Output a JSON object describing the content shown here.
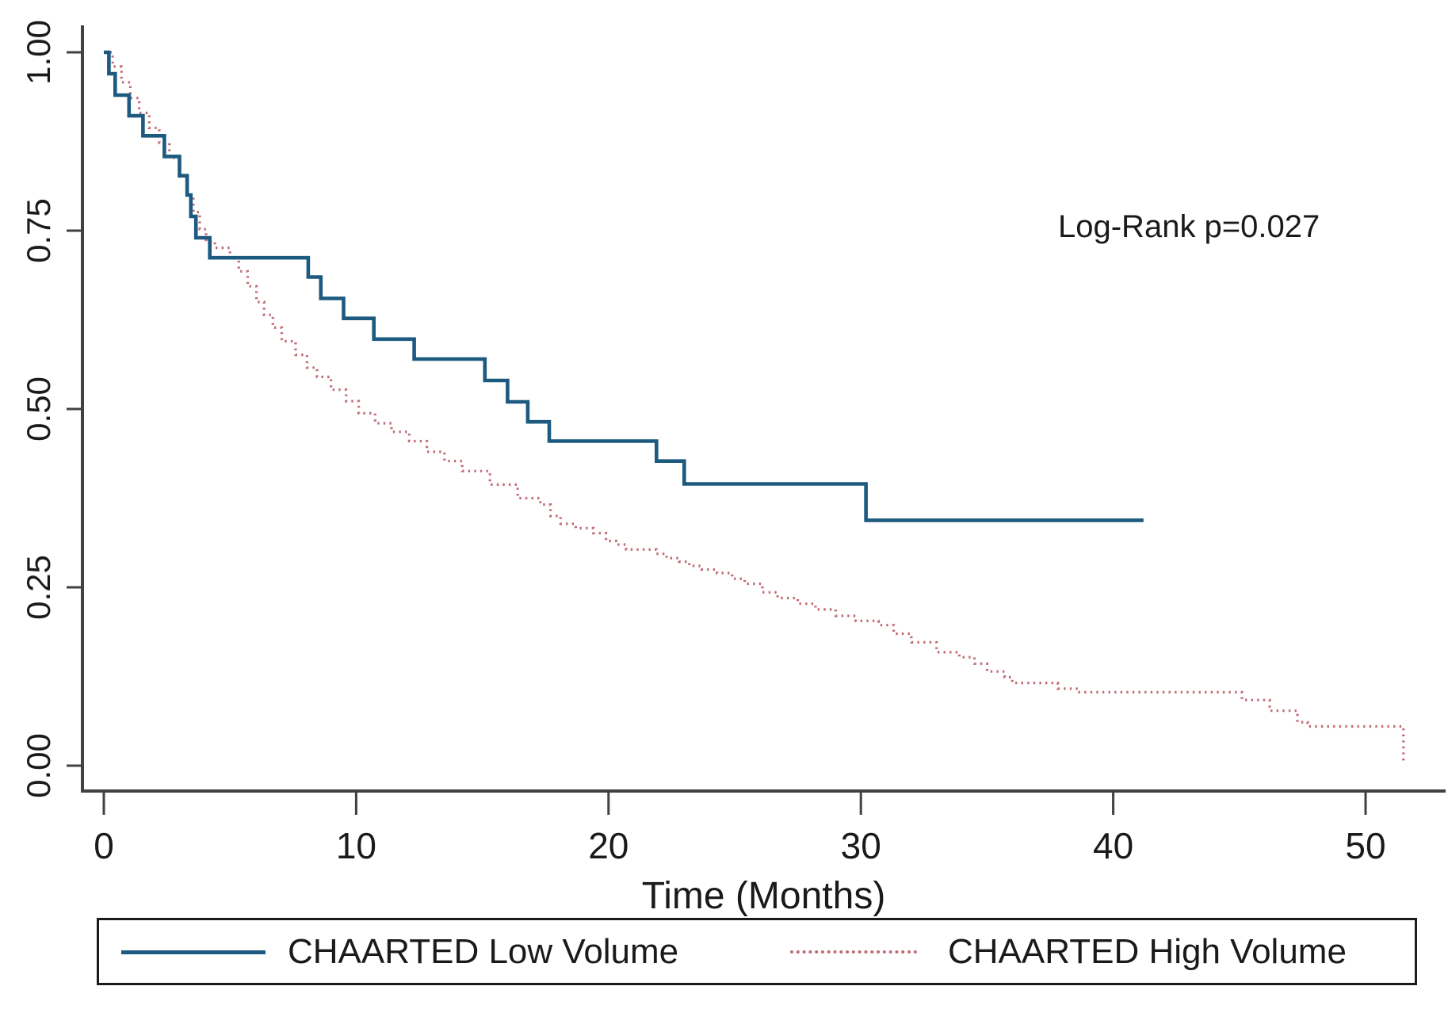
{
  "figure": {
    "background": "#ffffff",
    "axis_color": "#414042",
    "text_color": "#1a1a1a"
  },
  "chart_data": {
    "type": "line",
    "subtype": "kaplan-meier-step-survival",
    "title": "",
    "xlabel": "Time (Months)",
    "ylabel": "",
    "annotation": "Log-Rank p=0.027",
    "grid": false,
    "legend_position": "bottom-boxed",
    "xlim": [
      0,
      53
    ],
    "ylim": [
      0.0,
      1.0
    ],
    "x_ticks": [
      0,
      10,
      20,
      30,
      40,
      50
    ],
    "y_ticks": [
      "0.00",
      "0.25",
      "0.50",
      "0.75",
      "1.00"
    ],
    "series": [
      {
        "name": "CHAARTED High Volume",
        "style": "dotted",
        "color": "#c06b74",
        "end_time": 51.6,
        "points": [
          [
            0,
            1.0
          ],
          [
            0.35,
            0.98
          ],
          [
            0.7,
            0.958
          ],
          [
            1.05,
            0.936
          ],
          [
            1.4,
            0.915
          ],
          [
            1.8,
            0.894
          ],
          [
            2.2,
            0.873
          ],
          [
            2.6,
            0.852
          ],
          [
            3.0,
            0.826
          ],
          [
            3.3,
            0.8
          ],
          [
            3.55,
            0.776
          ],
          [
            3.8,
            0.752
          ],
          [
            4.05,
            0.735
          ],
          [
            4.4,
            0.726
          ],
          [
            5.0,
            0.712
          ],
          [
            5.35,
            0.693
          ],
          [
            5.7,
            0.672
          ],
          [
            6.05,
            0.65
          ],
          [
            6.35,
            0.632
          ],
          [
            6.7,
            0.614
          ],
          [
            7.05,
            0.595
          ],
          [
            7.6,
            0.576
          ],
          [
            8.05,
            0.558
          ],
          [
            8.45,
            0.545
          ],
          [
            9.0,
            0.527
          ],
          [
            9.6,
            0.511
          ],
          [
            10.1,
            0.494
          ],
          [
            10.75,
            0.48
          ],
          [
            11.4,
            0.468
          ],
          [
            12.1,
            0.455
          ],
          [
            12.8,
            0.44
          ],
          [
            13.5,
            0.427
          ],
          [
            14.2,
            0.413
          ],
          [
            15.3,
            0.394
          ],
          [
            16.4,
            0.375
          ],
          [
            17.3,
            0.366
          ],
          [
            17.7,
            0.35
          ],
          [
            18.1,
            0.339
          ],
          [
            18.7,
            0.333
          ],
          [
            19.4,
            0.326
          ],
          [
            19.9,
            0.315
          ],
          [
            20.3,
            0.31
          ],
          [
            20.7,
            0.303
          ],
          [
            21.9,
            0.297
          ],
          [
            22.3,
            0.291
          ],
          [
            22.8,
            0.286
          ],
          [
            23.2,
            0.28
          ],
          [
            23.7,
            0.275
          ],
          [
            24.3,
            0.27
          ],
          [
            24.9,
            0.262
          ],
          [
            25.4,
            0.255
          ],
          [
            26.1,
            0.243
          ],
          [
            26.7,
            0.235
          ],
          [
            27.5,
            0.227
          ],
          [
            28.2,
            0.219
          ],
          [
            29.0,
            0.21
          ],
          [
            29.8,
            0.203
          ],
          [
            30.7,
            0.197
          ],
          [
            31.3,
            0.185
          ],
          [
            32.0,
            0.173
          ],
          [
            33.0,
            0.159
          ],
          [
            33.9,
            0.152
          ],
          [
            34.5,
            0.143
          ],
          [
            35.0,
            0.132
          ],
          [
            35.7,
            0.124
          ],
          [
            36.0,
            0.116
          ],
          [
            37.8,
            0.108
          ],
          [
            38.6,
            0.103
          ],
          [
            45.1,
            0.092
          ],
          [
            46.2,
            0.077
          ],
          [
            47.3,
            0.061
          ],
          [
            47.7,
            0.055
          ],
          [
            51.5,
            0.006
          ]
        ]
      },
      {
        "name": "CHAARTED Low Volume",
        "style": "solid",
        "color": "#1c5a7f",
        "end_time": 41.2,
        "points": [
          [
            0,
            1.0
          ],
          [
            0.2,
            0.97
          ],
          [
            0.45,
            0.94
          ],
          [
            1.0,
            0.911
          ],
          [
            1.55,
            0.883
          ],
          [
            2.4,
            0.854
          ],
          [
            3.0,
            0.827
          ],
          [
            3.3,
            0.8
          ],
          [
            3.45,
            0.77
          ],
          [
            3.65,
            0.74
          ],
          [
            4.2,
            0.712
          ],
          [
            8.1,
            0.685
          ],
          [
            8.6,
            0.655
          ],
          [
            9.5,
            0.627
          ],
          [
            10.7,
            0.598
          ],
          [
            12.3,
            0.57
          ],
          [
            15.1,
            0.54
          ],
          [
            16.0,
            0.51
          ],
          [
            16.8,
            0.482
          ],
          [
            17.65,
            0.455
          ],
          [
            21.9,
            0.427
          ],
          [
            23.0,
            0.395
          ],
          [
            30.2,
            0.344
          ]
        ]
      }
    ]
  },
  "legend": {
    "items": [
      {
        "label": "CHAARTED Low Volume",
        "style": "solid",
        "color": "#1c5a7f"
      },
      {
        "label": "CHAARTED High Volume",
        "style": "dotted",
        "color": "#c06b74"
      }
    ]
  }
}
